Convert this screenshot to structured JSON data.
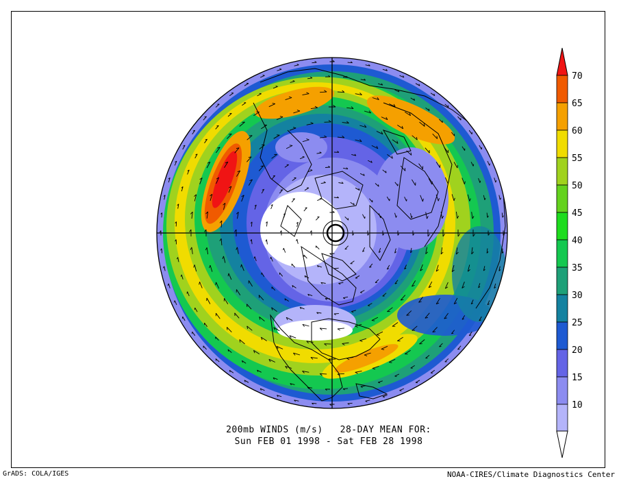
{
  "title": {
    "line1": "200mb WINDS (m/s)   28-DAY MEAN FOR:",
    "line2": "Sun FEB 01 1998 - Sat FEB 28 1998"
  },
  "footer": {
    "left": "GrADS: COLA/IGES",
    "right": "NOAA-CIRES/Climate Diagnostics Center"
  },
  "colorbar": {
    "levels": [
      {
        "label": "10",
        "color": "#b4b4fa"
      },
      {
        "label": "15",
        "color": "#8c8cf0"
      },
      {
        "label": "20",
        "color": "#6464e6"
      },
      {
        "label": "25",
        "color": "#1e5ad2"
      },
      {
        "label": "30",
        "color": "#1482a0"
      },
      {
        "label": "35",
        "color": "#1ea078"
      },
      {
        "label": "40",
        "color": "#14c850"
      },
      {
        "label": "45",
        "color": "#1edc1e"
      },
      {
        "label": "50",
        "color": "#64d21e"
      },
      {
        "label": "55",
        "color": "#a0d21e"
      },
      {
        "label": "60",
        "color": "#f0dc00"
      },
      {
        "label": "65",
        "color": "#f5a000"
      },
      {
        "label": "70",
        "color": "#f05a00"
      }
    ],
    "top_color": "#f01414",
    "bottom_color": "#ffffff"
  }
}
